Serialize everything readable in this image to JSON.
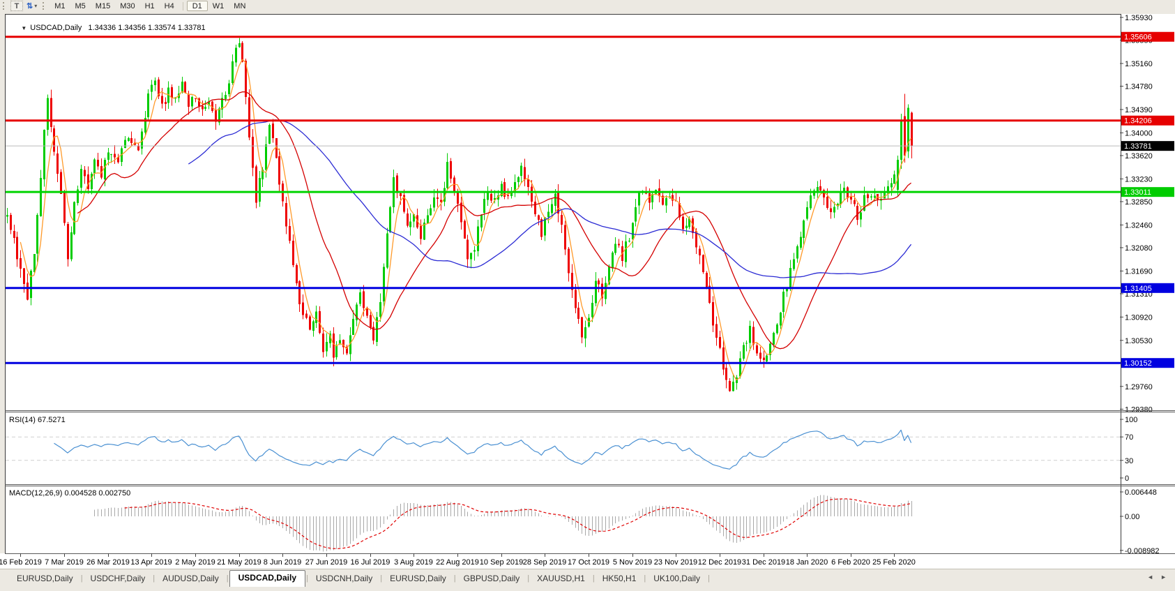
{
  "toolbar": {
    "text_tool_label": "T",
    "arrows_caret": "▾",
    "arrows_glyph": "⇅",
    "timeframes": [
      "M1",
      "M5",
      "M15",
      "M30",
      "H1",
      "H4",
      "D1",
      "W1",
      "MN"
    ],
    "active_timeframe": "D1"
  },
  "chart": {
    "collapse_icon": "▼",
    "header_text": "USDCAD,Daily   1.34336 1.34356 1.33574 1.33781"
  },
  "price_axis": {
    "ticks": [
      {
        "label": "1.35930",
        "price": 1.3593
      },
      {
        "label": "1.35550",
        "price": 1.3555
      },
      {
        "label": "1.35160",
        "price": 1.3516
      },
      {
        "label": "1.34780",
        "price": 1.3478
      },
      {
        "label": "1.34390",
        "price": 1.3439
      },
      {
        "label": "1.34000",
        "price": 1.34
      },
      {
        "label": "1.33620",
        "price": 1.3362
      },
      {
        "label": "1.33230",
        "price": 1.3323
      },
      {
        "label": "1.32850",
        "price": 1.3285
      },
      {
        "label": "1.32460",
        "price": 1.3246
      },
      {
        "label": "1.32080",
        "price": 1.3208
      },
      {
        "label": "1.31690",
        "price": 1.3169
      },
      {
        "label": "1.31310",
        "price": 1.3131
      },
      {
        "label": "1.30920",
        "price": 1.3092
      },
      {
        "label": "1.30530",
        "price": 1.3053
      },
      {
        "label": "1.29760",
        "price": 1.2976
      },
      {
        "label": "1.29380",
        "price": 1.2938
      }
    ],
    "badges": [
      {
        "label": "1.35606",
        "price": 1.35606,
        "color": "#e60000"
      },
      {
        "label": "1.34206",
        "price": 1.34206,
        "color": "#e60000"
      },
      {
        "label": "1.33781",
        "price": 1.33781,
        "color": "#000000"
      },
      {
        "label": "1.33011",
        "price": 1.33011,
        "color": "#00cc00"
      },
      {
        "label": "1.31405",
        "price": 1.31405,
        "color": "#0000e0"
      },
      {
        "label": "1.30152",
        "price": 1.30152,
        "color": "#0000e0"
      }
    ]
  },
  "rsi": {
    "label": "RSI(14) 67.5271",
    "levels": [
      {
        "label": "100",
        "value": 100,
        "dashed": false
      },
      {
        "label": "70",
        "value": 70,
        "dashed": true
      },
      {
        "label": "30",
        "value": 30,
        "dashed": true
      },
      {
        "label": "0",
        "value": 0,
        "dashed": false
      }
    ]
  },
  "macd": {
    "label": "MACD(12,26,9) 0.004528 0.002750",
    "axis": [
      {
        "label": "0.006448",
        "value": 0.006448
      },
      {
        "label": "0.00",
        "value": 0.0
      },
      {
        "label": "-0.008982",
        "value": -0.008982
      }
    ]
  },
  "tabs": {
    "items": [
      "EURUSD,Daily",
      "USDCHF,Daily",
      "AUDUSD,Daily",
      "USDCAD,Daily",
      "USDCNH,Daily",
      "EURUSD,Daily",
      "GBPUSD,Daily",
      "XAUUSD,H1",
      "HK50,H1",
      "UK100,Daily"
    ],
    "active_index": 3,
    "scroll_left_icon": "◄",
    "scroll_right_icon": "►"
  },
  "chart_data": {
    "type": "candlestick",
    "symbol": "USDCAD",
    "timeframe": "Daily",
    "current_ohlc": {
      "open": 1.34336,
      "high": 1.34356,
      "low": 1.33574,
      "close": 1.33781
    },
    "current_price": 1.33781,
    "visible_price_range": [
      1.2938,
      1.3593
    ],
    "bars_visible": 270,
    "up_color": "#00cc00",
    "down_color": "#ee0000",
    "horizontal_lines": [
      {
        "price": 1.35606,
        "color": "#e60000"
      },
      {
        "price": 1.34206,
        "color": "#e60000"
      },
      {
        "price": 1.33011,
        "color": "#00d400"
      },
      {
        "price": 1.31405,
        "color": "#0000e0"
      },
      {
        "price": 1.30152,
        "color": "#0000e0"
      }
    ],
    "ma_lines": [
      {
        "period": 5,
        "color": "#ff9a2a"
      },
      {
        "period": 22,
        "color": "#d40000"
      },
      {
        "period": 55,
        "color": "#2b2bd4"
      }
    ],
    "indicators": {
      "rsi": {
        "period": 14,
        "value": 67.5271,
        "color": "#4a90d2"
      },
      "macd": {
        "fast": 12,
        "slow": 26,
        "signal": 9,
        "macd_value": 0.004528,
        "signal_value": 0.00275,
        "histogram_color": "#a8a8a8",
        "signal_color": "#e00000"
      }
    },
    "close_anchors": [
      [
        0,
        1.3258
      ],
      [
        2,
        1.3218
      ],
      [
        4,
        1.3168
      ],
      [
        6,
        1.3122
      ],
      [
        8,
        1.32
      ],
      [
        10,
        1.333
      ],
      [
        12,
        1.3462
      ],
      [
        14,
        1.336
      ],
      [
        16,
        1.3302
      ],
      [
        18,
        1.3192
      ],
      [
        20,
        1.3288
      ],
      [
        22,
        1.3338
      ],
      [
        24,
        1.3308
      ],
      [
        26,
        1.3352
      ],
      [
        28,
        1.3322
      ],
      [
        30,
        1.3372
      ],
      [
        33,
        1.3348
      ],
      [
        36,
        1.34
      ],
      [
        39,
        1.3372
      ],
      [
        42,
        1.3458
      ],
      [
        44,
        1.3488
      ],
      [
        46,
        1.3442
      ],
      [
        48,
        1.347
      ],
      [
        50,
        1.3452
      ],
      [
        52,
        1.3478
      ],
      [
        54,
        1.3446
      ],
      [
        56,
        1.3462
      ],
      [
        58,
        1.3432
      ],
      [
        60,
        1.3446
      ],
      [
        62,
        1.3422
      ],
      [
        64,
        1.3455
      ],
      [
        66,
        1.3482
      ],
      [
        68,
        1.354
      ],
      [
        69,
        1.3552
      ],
      [
        70,
        1.3515
      ],
      [
        72,
        1.3398
      ],
      [
        74,
        1.3292
      ],
      [
        76,
        1.3342
      ],
      [
        78,
        1.3412
      ],
      [
        80,
        1.336
      ],
      [
        82,
        1.3282
      ],
      [
        84,
        1.3212
      ],
      [
        86,
        1.3142
      ],
      [
        88,
        1.3098
      ],
      [
        90,
        1.3072
      ],
      [
        92,
        1.3098
      ],
      [
        94,
        1.3042
      ],
      [
        96,
        1.3062
      ],
      [
        97,
        1.3022
      ],
      [
        99,
        1.3058
      ],
      [
        101,
        1.3032
      ],
      [
        103,
        1.3082
      ],
      [
        105,
        1.3128
      ],
      [
        107,
        1.3098
      ],
      [
        109,
        1.3062
      ],
      [
        111,
        1.3118
      ],
      [
        113,
        1.3228
      ],
      [
        115,
        1.3318
      ],
      [
        117,
        1.3292
      ],
      [
        119,
        1.3242
      ],
      [
        121,
        1.3272
      ],
      [
        123,
        1.3222
      ],
      [
        125,
        1.3262
      ],
      [
        127,
        1.3298
      ],
      [
        129,
        1.3278
      ],
      [
        131,
        1.3348
      ],
      [
        133,
        1.3298
      ],
      [
        135,
        1.3252
      ],
      [
        137,
        1.3182
      ],
      [
        139,
        1.3212
      ],
      [
        141,
        1.3268
      ],
      [
        143,
        1.3298
      ],
      [
        145,
        1.3282
      ],
      [
        147,
        1.3308
      ],
      [
        149,
        1.3288
      ],
      [
        151,
        1.3318
      ],
      [
        153,
        1.3338
      ],
      [
        155,
        1.3308
      ],
      [
        157,
        1.3272
      ],
      [
        159,
        1.3232
      ],
      [
        161,
        1.3268
      ],
      [
        163,
        1.3298
      ],
      [
        165,
        1.3242
      ],
      [
        167,
        1.3162
      ],
      [
        169,
        1.3112
      ],
      [
        171,
        1.3062
      ],
      [
        173,
        1.3098
      ],
      [
        175,
        1.3148
      ],
      [
        177,
        1.3128
      ],
      [
        179,
        1.3168
      ],
      [
        181,
        1.3218
      ],
      [
        183,
        1.3192
      ],
      [
        185,
        1.3228
      ],
      [
        187,
        1.3278
      ],
      [
        189,
        1.3312
      ],
      [
        191,
        1.3292
      ],
      [
        193,
        1.3308
      ],
      [
        195,
        1.3272
      ],
      [
        197,
        1.3298
      ],
      [
        199,
        1.3278
      ],
      [
        201,
        1.3232
      ],
      [
        203,
        1.3258
      ],
      [
        205,
        1.3212
      ],
      [
        207,
        1.3162
      ],
      [
        209,
        1.3112
      ],
      [
        211,
        1.3058
      ],
      [
        213,
        1.3008
      ],
      [
        215,
        1.2968
      ],
      [
        217,
        1.2992
      ],
      [
        219,
        1.3038
      ],
      [
        221,
        1.3072
      ],
      [
        223,
        1.3032
      ],
      [
        225,
        1.3012
      ],
      [
        227,
        1.3048
      ],
      [
        229,
        1.3088
      ],
      [
        231,
        1.3128
      ],
      [
        233,
        1.3168
      ],
      [
        235,
        1.3208
      ],
      [
        237,
        1.3248
      ],
      [
        239,
        1.3288
      ],
      [
        241,
        1.3318
      ],
      [
        243,
        1.3298
      ],
      [
        245,
        1.3268
      ],
      [
        247,
        1.3288
      ],
      [
        249,
        1.3308
      ],
      [
        251,
        1.3282
      ],
      [
        253,
        1.3262
      ],
      [
        255,
        1.3288
      ],
      [
        257,
        1.3298
      ],
      [
        259,
        1.3282
      ],
      [
        261,
        1.3298
      ],
      [
        263,
        1.3312
      ],
      [
        264,
        1.3332
      ],
      [
        265,
        1.3355
      ]
    ],
    "last_bars": [
      [
        1.3305,
        1.3362,
        1.3295,
        1.3355
      ],
      [
        1.3355,
        1.3432,
        1.334,
        1.342
      ],
      [
        1.3428,
        1.3465,
        1.335,
        1.3362
      ],
      [
        1.3369,
        1.3448,
        1.3358,
        1.3442
      ],
      [
        1.34336,
        1.34356,
        1.33574,
        1.33781
      ]
    ],
    "date_labels": [
      "16 Feb 2019",
      "7 Mar 2019",
      "26 Mar 2019",
      "13 Apr 2019",
      "2 May 2019",
      "21 May 2019",
      "8 Jun 2019",
      "27 Jun 2019",
      "16 Jul 2019",
      "3 Aug 2019",
      "22 Aug 2019",
      "10 Sep 2019",
      "28 Sep 2019",
      "17 Oct 2019",
      "5 Nov 2019",
      "23 Nov 2019",
      "12 Dec 2019",
      "31 Dec 2019",
      "18 Jan 2020",
      "6 Feb 2020",
      "25 Feb 2020"
    ]
  }
}
